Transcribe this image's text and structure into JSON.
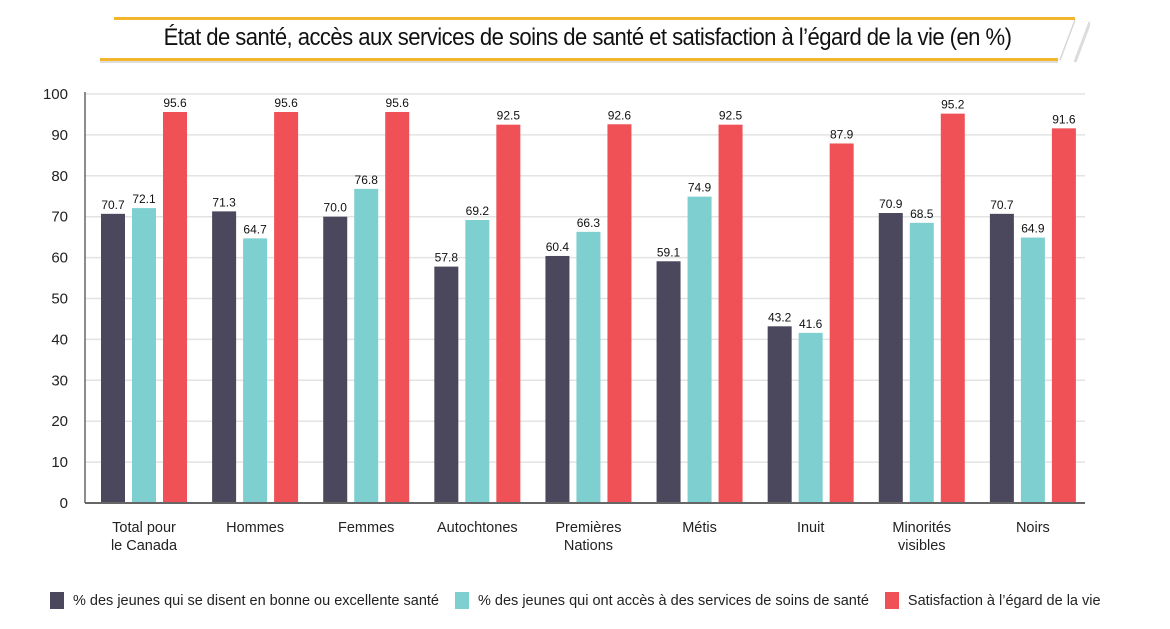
{
  "chart_data": {
    "type": "bar",
    "title": "État de santé, accès aux services de soins de santé et satisfaction à l’égard de la vie (en %)",
    "xlabel": "",
    "ylabel": "",
    "ylim": [
      0,
      100
    ],
    "yticks": [
      0,
      10,
      20,
      30,
      40,
      50,
      60,
      70,
      80,
      90,
      100
    ],
    "grid": true,
    "legend_position": "bottom",
    "categories": [
      [
        "Total pour",
        "le Canada"
      ],
      [
        "Hommes"
      ],
      [
        "Femmes"
      ],
      [
        "Autochtones"
      ],
      [
        "Premières",
        "Nations"
      ],
      [
        "Métis"
      ],
      [
        "Inuit"
      ],
      [
        "Minorités",
        "visibles"
      ],
      [
        "Noirs"
      ]
    ],
    "series": [
      {
        "name": "% des jeunes qui se disent en bonne ou excellente santé",
        "color": "#4b475c",
        "values": [
          70.7,
          71.3,
          70.0,
          57.8,
          60.4,
          59.1,
          43.2,
          70.9,
          70.7
        ],
        "labels": [
          "70.7",
          "71.3",
          "70.0",
          "57.8",
          "60.4",
          "59.1",
          "43.2",
          "70.9",
          "70.7"
        ]
      },
      {
        "name": "% des jeunes qui ont accès à des services de soins de santé",
        "color": "#7ecfcf",
        "values": [
          72.1,
          64.7,
          76.8,
          69.2,
          66.3,
          74.9,
          41.6,
          68.5,
          64.9
        ],
        "labels": [
          "72.1",
          "64.7",
          "76.8",
          "69.2",
          "66.3",
          "74.9",
          "41.6",
          "68.5",
          "64.9"
        ]
      },
      {
        "name": "Satisfaction à l’égard de la vie",
        "color": "#ef5156",
        "values": [
          95.6,
          95.6,
          95.6,
          92.5,
          92.6,
          92.5,
          87.9,
          95.2,
          91.6
        ],
        "labels": [
          "95.6",
          "95.6",
          "95.6",
          "92.5",
          "92.6",
          "92.5",
          "87.9",
          "95.2",
          "91.6"
        ]
      }
    ]
  },
  "colors": {
    "title_accent": "#f2b52c",
    "gridline": "#e3e3e3",
    "axis": "#666666"
  }
}
